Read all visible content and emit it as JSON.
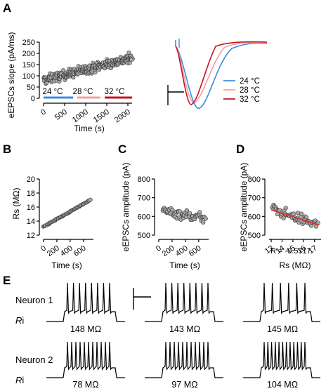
{
  "panels": {
    "A": "A",
    "B": "B",
    "C": "C",
    "D": "D",
    "E": "E"
  },
  "colors": {
    "c24": "#3c8ddc",
    "c28": "#f0a0a0",
    "c32": "#cc1020",
    "point_fill": "#a9a9a9",
    "fit_line": "#e03030"
  },
  "chart_data": [
    {
      "id": "A_scatter",
      "type": "scatter",
      "xlabel": "Time (s)",
      "ylabel": "eEPSCs slope (pA/ms)",
      "xlim": [
        0,
        2100
      ],
      "ylim": [
        0,
        250
      ],
      "xticks": [
        0,
        500,
        1000,
        1500,
        2000
      ],
      "yticks": [
        0,
        50,
        100,
        150,
        200,
        250
      ],
      "temperature_labels": [
        "24 °C",
        "28 °C",
        "32 °C"
      ],
      "temperature_segments": [
        [
          0,
          700
        ],
        [
          800,
          1350
        ],
        [
          1450,
          2100
        ]
      ],
      "points": {
        "count": 300,
        "x_range": [
          0,
          2100
        ],
        "trend_start": 80,
        "trend_end": 180,
        "spread": 40
      }
    },
    {
      "id": "A_traces",
      "type": "line",
      "series": [
        {
          "name": "24 °C",
          "color": "#3c8ddc"
        },
        {
          "name": "28 °C",
          "color": "#f0a0a0"
        },
        {
          "name": "32 °C",
          "color": "#cc1020"
        }
      ]
    },
    {
      "id": "B",
      "type": "scatter",
      "xlabel": "Time (s)",
      "ylabel": "Rs (MΩ)",
      "xlim": [
        0,
        750
      ],
      "ylim": [
        12,
        20
      ],
      "xticks": [
        0,
        200,
        400,
        600
      ],
      "yticks": [
        12,
        14,
        16,
        18,
        20
      ],
      "points": {
        "count": 60,
        "x_range": [
          0,
          700
        ],
        "y_start": 13.2,
        "y_end": 17.0,
        "spread": 0.1
      }
    },
    {
      "id": "C",
      "type": "scatter",
      "xlabel": "Time (s)",
      "ylabel": "eEPSCs amplitude (pA)",
      "xlim": [
        0,
        750
      ],
      "ylim": [
        500,
        800
      ],
      "xticks": [
        0,
        200,
        400,
        600
      ],
      "yticks": [
        500,
        600,
        700,
        800
      ],
      "points": {
        "count": 60,
        "x_range": [
          60,
          700
        ],
        "y_start": 630,
        "y_end": 590,
        "spread": 55
      }
    },
    {
      "id": "D",
      "type": "scatter",
      "xlabel": "Rs (MΩ)",
      "ylabel": "eEPSCs amplitude (pA)",
      "xlim": [
        12.8,
        17.6
      ],
      "ylim": [
        500,
        800
      ],
      "xticks": [
        13,
        14,
        15,
        16,
        17
      ],
      "yticks": [
        500,
        600,
        700,
        800
      ],
      "annotation": "R = -0.5717",
      "fit": {
        "x": [
          13.0,
          17.4
        ],
        "y": [
          635,
          555
        ]
      },
      "points": {
        "count": 55,
        "x_range": [
          13.1,
          17.3
        ],
        "y_start": 640,
        "y_end": 555,
        "spread": 55
      }
    }
  ],
  "E": {
    "rows": [
      {
        "neuron": "Neuron 1",
        "ri_prefix": "R",
        "ri_suffix": "i",
        "values": [
          "148 MΩ",
          "143 MΩ",
          "145 MΩ"
        ],
        "spikes": [
          8,
          8,
          6
        ]
      },
      {
        "neuron": "Neuron 2",
        "ri_prefix": "R",
        "ri_suffix": "i",
        "values": [
          "78 MΩ",
          "97 MΩ",
          "104 MΩ"
        ],
        "spikes": [
          11,
          11,
          12
        ]
      }
    ]
  }
}
